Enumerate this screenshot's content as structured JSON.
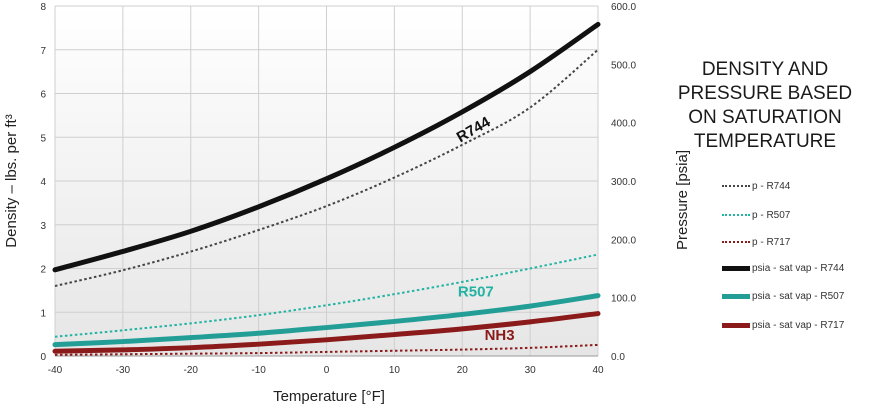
{
  "chart_data": {
    "type": "line",
    "title": "DENSITY AND PRESSURE BASED ON SATURATION TEMPERATURE",
    "title_lines": [
      "DENSITY AND",
      "PRESSURE BASED",
      "ON SATURATION",
      "TEMPERATURE"
    ],
    "xlabel": "Temperature  [°F]",
    "ylabel": "Density – lbs. per ft³",
    "y2label": "Pressure  [psia]",
    "xlim": [
      -40,
      40
    ],
    "ylim": [
      0,
      8
    ],
    "y2lim": [
      0,
      600
    ],
    "x_ticks": [
      "-40",
      "-30",
      "-20",
      "-10",
      "0",
      "10",
      "20",
      "30",
      "40"
    ],
    "y_ticks": [
      "0",
      "1",
      "2",
      "3",
      "4",
      "5",
      "6",
      "7",
      "8"
    ],
    "y2_ticks": [
      "0.0",
      "100.0",
      "200.0",
      "300.0",
      "400.0",
      "500.0",
      "600.0"
    ],
    "grid": true,
    "legend_position": "right",
    "x": [
      -40,
      -30,
      -20,
      -10,
      0,
      10,
      20,
      30,
      40
    ],
    "series": [
      {
        "name": "p - R744",
        "axis": "right",
        "style": "dotted",
        "color": "#444444",
        "values": [
          120,
          147,
          179,
          216,
          257,
          306,
          362,
          426,
          525
        ]
      },
      {
        "name": "p - R507",
        "axis": "right",
        "style": "dotted",
        "color": "#22b3a3",
        "values": [
          33,
          44,
          56,
          70,
          87,
          106,
          127,
          150,
          174
        ]
      },
      {
        "name": "p - R717",
        "axis": "right",
        "style": "dotted",
        "color": "#8b1a1a",
        "values": [
          2,
          3,
          4,
          5,
          7,
          9,
          11,
          14,
          19
        ]
      },
      {
        "name": "psia - sat vap - R744",
        "axis": "left",
        "style": "solid",
        "color": "#111111",
        "values": [
          1.97,
          2.39,
          2.85,
          3.41,
          4.05,
          4.77,
          5.58,
          6.5,
          7.58
        ]
      },
      {
        "name": "psia - sat vap - R507",
        "axis": "left",
        "style": "solid",
        "color": "#239e96",
        "values": [
          0.26,
          0.33,
          0.42,
          0.52,
          0.65,
          0.79,
          0.95,
          1.14,
          1.38
        ]
      },
      {
        "name": "psia - sat vap - R717",
        "axis": "left",
        "style": "solid",
        "color": "#8b1a1a",
        "values": [
          0.11,
          0.14,
          0.19,
          0.27,
          0.37,
          0.49,
          0.62,
          0.78,
          0.97
        ]
      }
    ],
    "annotations": [
      {
        "text": "R744",
        "x": 22,
        "y": 5.08,
        "color": "#111111",
        "rotate": -30
      },
      {
        "text": "R507",
        "x": 22,
        "y": 1.36,
        "color": "#22b3a3",
        "rotate": 0
      },
      {
        "text": "NH3",
        "x": 25.5,
        "y": 0.37,
        "color": "#8b1a1a",
        "rotate": 0
      }
    ]
  }
}
